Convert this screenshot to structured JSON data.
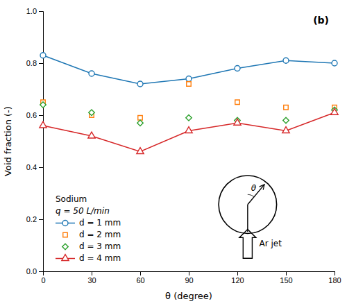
{
  "chart_data": {
    "type": "line",
    "x_label": "θ (degree)",
    "y_label": "Void fraction (-)",
    "x": [
      0,
      30,
      60,
      90,
      120,
      150,
      180
    ],
    "series": [
      {
        "name": "d = 1 mm",
        "values": [
          0.83,
          0.76,
          0.72,
          0.74,
          0.78,
          0.81,
          0.8
        ],
        "marker": "circle",
        "line_style": "solid"
      },
      {
        "name": "d = 2 mm",
        "values": [
          0.65,
          0.6,
          0.59,
          0.72,
          0.65,
          0.63,
          0.63
        ],
        "marker": "square",
        "line_style": "none"
      },
      {
        "name": "d = 3 mm",
        "values": [
          0.64,
          0.61,
          0.57,
          0.59,
          0.58,
          0.58,
          0.62
        ],
        "marker": "diamond",
        "line_style": "none"
      },
      {
        "name": "d = 4 mm",
        "values": [
          0.56,
          0.52,
          0.46,
          0.54,
          0.57,
          0.54,
          0.61
        ],
        "marker": "triangle",
        "line_style": "solid"
      }
    ],
    "xlim": [
      0,
      180
    ],
    "ylim": [
      0.0,
      1.0
    ],
    "xticks": [
      0,
      30,
      60,
      90,
      120,
      150,
      180
    ],
    "yticks": [
      {
        "value": 0.0,
        "label": "0.0"
      },
      0.2,
      0.4,
      0.6,
      0.8,
      {
        "value": 1.0,
        "label": "1.0"
      }
    ],
    "grid": false,
    "legend": "lower left",
    "annotations": [
      "(b)",
      "Sodium",
      "q = 50 L/min",
      "Ar jet",
      "θ"
    ]
  }
}
